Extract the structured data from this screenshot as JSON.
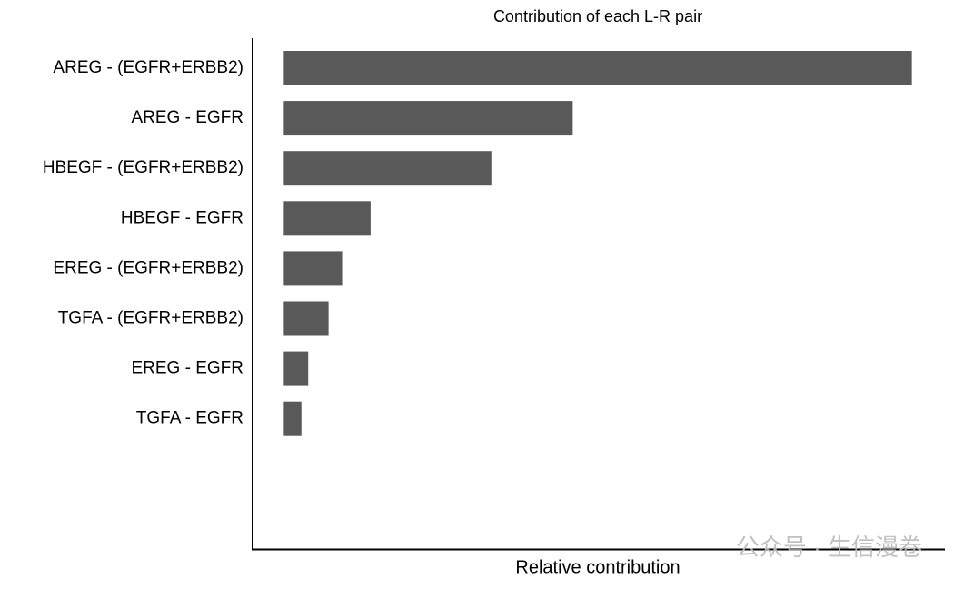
{
  "chart_data": {
    "type": "hbar",
    "title": "Contribution of each L-R pair",
    "x_label": "Relative contribution",
    "categories": [
      "AREG - (EGFR+ERBB2)",
      "AREG - EGFR",
      "HBEGF - (EGFR+ERBB2)",
      "HBEGF - EGFR",
      "EREG - (EGFR+ERBB2)",
      "TGFA - (EGFR+ERBB2)",
      "EREG - EGFR",
      "TGFA - EGFR"
    ],
    "values": [
      0.463,
      0.213,
      0.153,
      0.064,
      0.043,
      0.033,
      0.018,
      0.013
    ],
    "color": "#595959",
    "xlim": [
      -0.023,
      0.486
    ],
    "watermark": "公众号 · 生信漫卷"
  }
}
